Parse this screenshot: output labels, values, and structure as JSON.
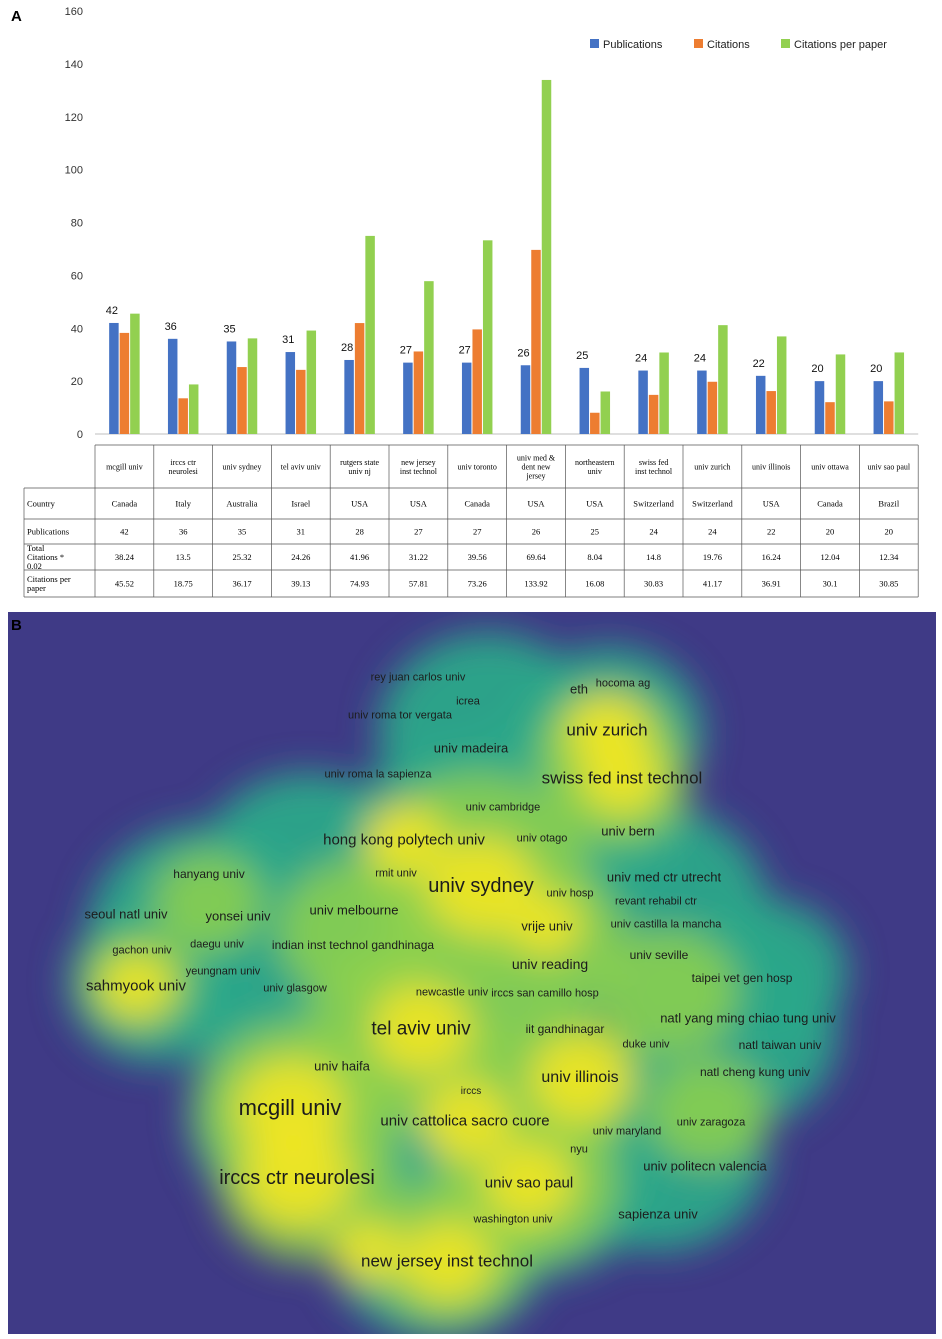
{
  "panel_letters": {
    "a": "A",
    "b": "B"
  },
  "legend": {
    "publications": "Publications",
    "citations": "Citations",
    "citations_per_paper": "Citations per paper"
  },
  "colors": {
    "publications": "#4472c4",
    "citations": "#ed7d31",
    "citations_per_paper": "#92d050",
    "map_background": "#3f3a86",
    "map_mid": "#2ba889",
    "map_hot": "#f2e524"
  },
  "chart_data": [
    {
      "type": "bar",
      "title": "",
      "xlabel": "",
      "ylabel": "",
      "ylim": [
        0,
        160
      ],
      "yticks": [
        0,
        20,
        40,
        60,
        80,
        100,
        120,
        140,
        160
      ],
      "legend_position": "top-right",
      "grid": false,
      "categories": [
        "mcgill univ",
        "irccs ctr neurolesi",
        "univ sydney",
        "tel aviv univ",
        "rutgers state univ nj",
        "new jersey inst technol",
        "univ toronto",
        "univ med & dent new jersey",
        "northeastern univ",
        "swiss fed inst technol",
        "univ zurich",
        "univ illinois",
        "univ ottawa",
        "univ sao paul"
      ],
      "series": [
        {
          "name": "Publications",
          "values": [
            42,
            36,
            35,
            31,
            28,
            27,
            27,
            26,
            25,
            24,
            24,
            22,
            20,
            20
          ]
        },
        {
          "name": "Citations",
          "values": [
            38.24,
            13.5,
            25.32,
            24.26,
            41.96,
            31.22,
            39.56,
            69.64,
            8.04,
            14.8,
            19.76,
            16.24,
            12.04,
            12.34
          ]
        },
        {
          "name": "Citations per paper",
          "values": [
            45.52,
            18.75,
            36.17,
            39.13,
            74.93,
            57.81,
            73.26,
            133.92,
            16.08,
            30.83,
            41.17,
            36.91,
            30.1,
            30.85
          ]
        }
      ],
      "data_labels": [
        "42",
        "36",
        "35",
        "31",
        "28",
        "27",
        "27",
        "26",
        "25",
        "24",
        "24",
        "22",
        "20",
        "20"
      ],
      "table": {
        "column_headers": [
          "mcgill univ",
          "irccs ctr neurolesi",
          "univ sydney",
          "tel aviv univ",
          "rutgers state univ nj",
          "new jersey inst technol",
          "univ toronto",
          "univ med & dent new jersey",
          "northeastern univ",
          "swiss fed inst technol",
          "univ zurich",
          "univ illinois",
          "univ ottawa",
          "univ sao paul"
        ],
        "rows": [
          {
            "label": "Country",
            "values": [
              "Canada",
              "Italy",
              "Australia",
              "Israel",
              "USA",
              "USA",
              "Canada",
              "USA",
              "USA",
              "Switzerland",
              "Switzerland",
              "USA",
              "Canada",
              "Brazil"
            ]
          },
          {
            "label": "Publications",
            "values": [
              "42",
              "36",
              "35",
              "31",
              "28",
              "27",
              "27",
              "26",
              "25",
              "24",
              "24",
              "22",
              "20",
              "20"
            ]
          },
          {
            "label": "Total Citations * 0.02",
            "values": [
              "38.24",
              "13.5",
              "25.32",
              "24.26",
              "41.96",
              "31.22",
              "39.56",
              "69.64",
              "8.04",
              "14.8",
              "19.76",
              "16.24",
              "12.04",
              "12.34"
            ]
          },
          {
            "label": "Citations per paper",
            "values": [
              "45.52",
              "18.75",
              "36.17",
              "39.13",
              "74.93",
              "57.81",
              "73.26",
              "133.92",
              "16.08",
              "30.83",
              "41.17",
              "36.91",
              "30.1",
              "30.85"
            ]
          }
        ]
      }
    },
    {
      "type": "heatmap",
      "title": "",
      "labels": [
        "rey juan carlos univ",
        "hocoma ag",
        "eth",
        "icrea",
        "univ roma tor vergata",
        "univ zurich",
        "univ madeira",
        "swiss fed inst technol",
        "univ roma la sapienza",
        "univ cambridge",
        "univ bern",
        "hong kong polytech univ",
        "univ otago",
        "hanyang univ",
        "rmit univ",
        "univ sydney",
        "univ med ctr utrecht",
        "univ hosp",
        "revant rehabil ctr",
        "seoul natl univ",
        "yonsei univ",
        "univ melbourne",
        "vrije univ",
        "univ castilla la mancha",
        "gachon univ",
        "daegu univ",
        "indian inst technol gandhinaga",
        "univ seville",
        "univ reading",
        "yeungnam univ",
        "taipei vet gen hosp",
        "sahmyook univ",
        "univ glasgow",
        "newcastle univ",
        "irccs san camillo hosp",
        "natl yang ming chiao tung univ",
        "tel aviv univ",
        "iit gandhinagar",
        "duke univ",
        "natl taiwan univ",
        "univ haifa",
        "natl cheng kung univ",
        "univ illinois",
        "irccs",
        "mcgill univ",
        "univ zaragoza",
        "univ cattolica sacro cuore",
        "univ maryland",
        "nyu",
        "univ politecn valencia",
        "irccs ctr neurolesi",
        "univ sao paul",
        "sapienza univ",
        "washington univ",
        "new jersey inst technol"
      ]
    }
  ]
}
